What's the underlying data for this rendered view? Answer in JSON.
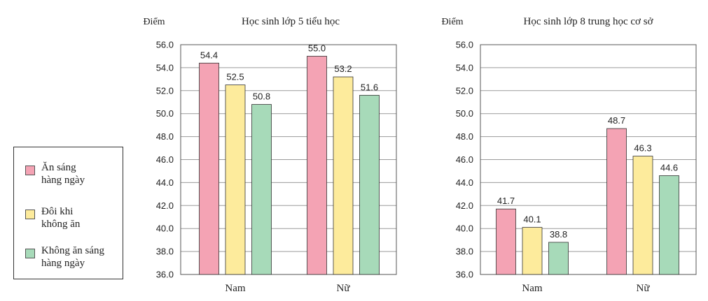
{
  "legend": [
    {
      "label": "Ăn sáng\nhàng ngày",
      "color": "#f4a3b4"
    },
    {
      "label": "Đôi khi\nkhông ăn",
      "color": "#fdeb9c"
    },
    {
      "label": "Không ăn sáng\nhàng ngày",
      "color": "#a7dab9"
    }
  ],
  "chart_data": [
    {
      "type": "bar",
      "title": "Học sinh lớp 5 tiểu học",
      "ylabel": "Điểm",
      "xlabel": "",
      "categories": [
        "Nam",
        "Nữ"
      ],
      "series": [
        {
          "name": "Ăn sáng hàng ngày",
          "values": [
            54.4,
            55.0
          ],
          "labels": [
            "54.4",
            "55.0"
          ]
        },
        {
          "name": "Đôi khi không ăn",
          "values": [
            52.5,
            53.2
          ],
          "labels": [
            "52.5",
            "53.2"
          ]
        },
        {
          "name": "Không ăn sáng hàng ngày",
          "values": [
            50.8,
            51.6
          ],
          "labels": [
            "50.8",
            "51.6"
          ]
        }
      ],
      "ylim": [
        36.0,
        56.0
      ],
      "yticks": [
        "36.0",
        "38.0",
        "40.0",
        "42.0",
        "44.0",
        "46.0",
        "48.0",
        "50.0",
        "52.0",
        "54.0",
        "56.0"
      ],
      "grid": true
    },
    {
      "type": "bar",
      "title": "Học sinh lớp 8 trung học cơ sở",
      "ylabel": "Điểm",
      "xlabel": "",
      "categories": [
        "Nam",
        "Nữ"
      ],
      "series": [
        {
          "name": "Ăn sáng hàng ngày",
          "values": [
            41.7,
            48.7
          ],
          "labels": [
            "41.7",
            "48.7"
          ]
        },
        {
          "name": "Đôi khi không ăn",
          "values": [
            40.1,
            46.3
          ],
          "labels": [
            "40.1",
            "46.3"
          ]
        },
        {
          "name": "Không ăn sáng hàng ngày",
          "values": [
            38.8,
            44.6
          ],
          "labels": [
            "38.8",
            "44.6"
          ]
        }
      ],
      "ylim": [
        36.0,
        56.0
      ],
      "yticks": [
        "36.0",
        "38.0",
        "40.0",
        "42.0",
        "44.0",
        "46.0",
        "48.0",
        "50.0",
        "52.0",
        "54.0",
        "56.0"
      ],
      "grid": true
    }
  ]
}
